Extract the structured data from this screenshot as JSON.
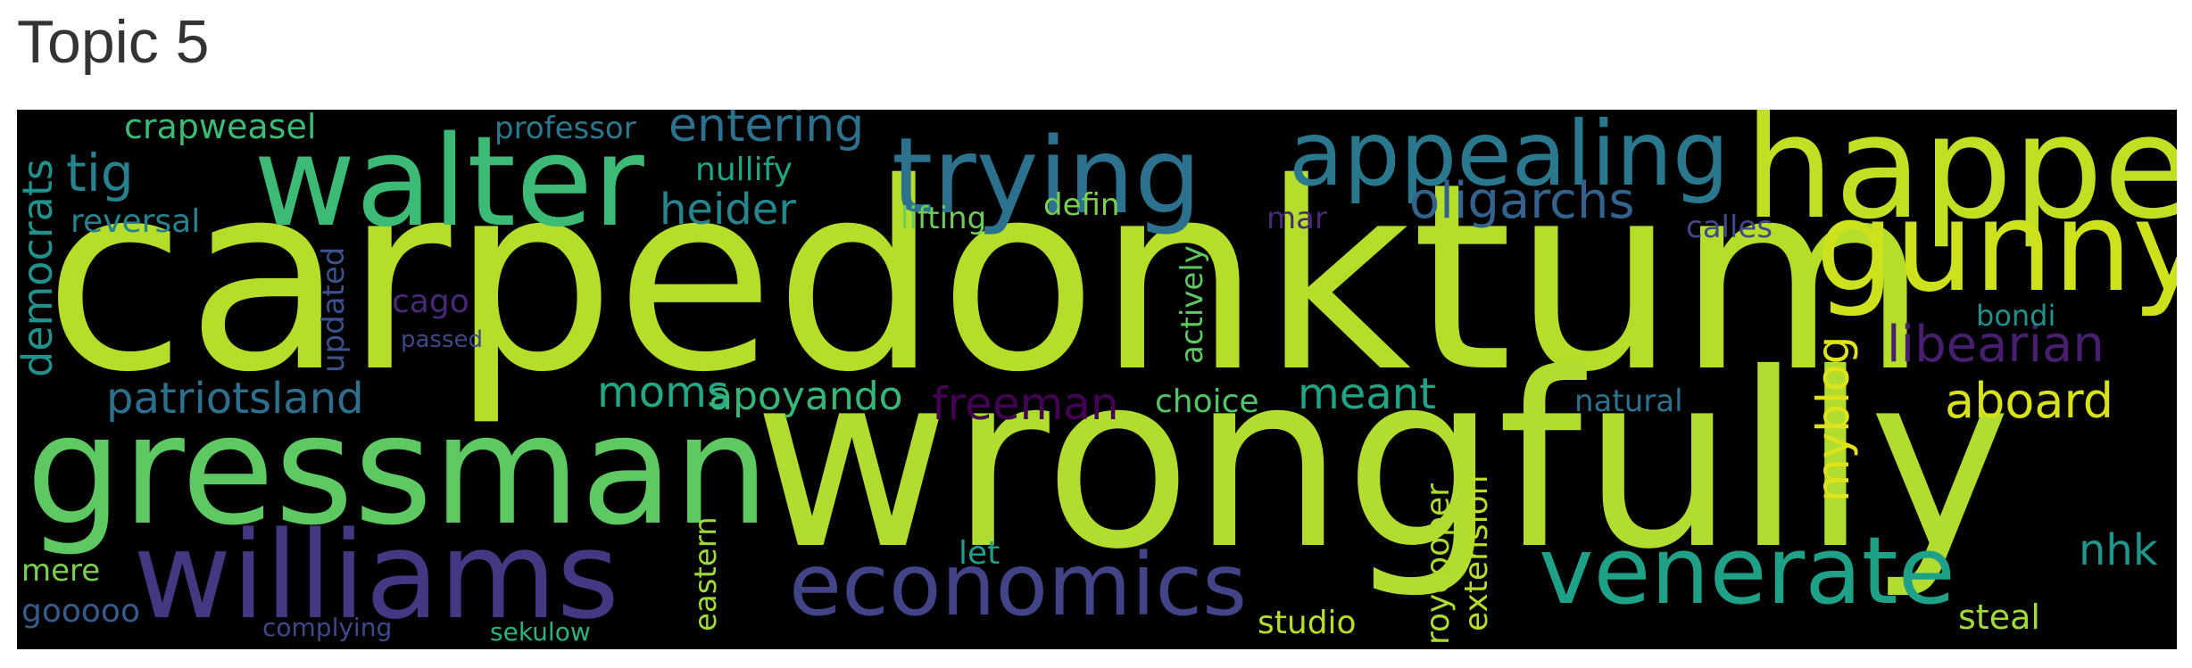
{
  "title": "Topic 5",
  "words": {
    "carpedonktum": "carpedonktum",
    "wrongfully": "wrongfully",
    "gressman": "gressman",
    "walter": "walter",
    "happen": "happen",
    "gunny": "gunny",
    "williams": "williams",
    "trying": "trying",
    "appealing": "appealing",
    "economics": "economics",
    "venerate": "venerate",
    "oligarchs": "oligarchs",
    "entering": "entering",
    "tig": "tig",
    "heider": "heider",
    "libearian": "libearian",
    "aboard": "aboard",
    "patriotsland": "patriotsland",
    "moms": "moms",
    "apoyando": "apoyando",
    "freeman": "freeman",
    "meant": "meant",
    "choice": "choice",
    "natural": "natural",
    "crapweasel": "crapweasel",
    "reversal": "reversal",
    "professor": "professor",
    "nullify": "nullify",
    "lifting": "lifting",
    "defin": "defin",
    "mar": "mar",
    "calles": "calles",
    "cago": "cago",
    "passed": "passed",
    "bondi": "bondi",
    "nhk": "nhk",
    "steal": "steal",
    "studio": "studio",
    "let": "let",
    "mere": "mere",
    "gooooo": "gooooo",
    "complying": "complying",
    "sekulow": "sekulow",
    "democrats": "democrats",
    "updated": "updated",
    "actively": "actively",
    "myblog": "myblog",
    "roycooper": "roycooper",
    "extension": "extension",
    "eastern": "eastern"
  }
}
